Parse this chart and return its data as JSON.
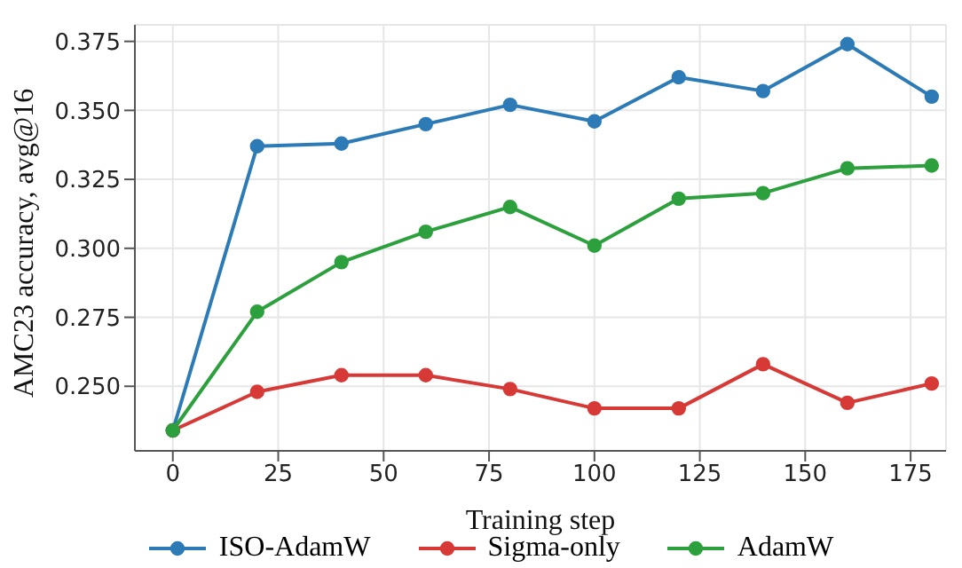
{
  "chart_data": {
    "type": "line",
    "xlabel": "Training step",
    "ylabel": "AMC23 accuracy, avg@16",
    "x": [
      0,
      20,
      40,
      60,
      80,
      100,
      120,
      140,
      160,
      180
    ],
    "series": [
      {
        "name": "ISO-AdamW",
        "color": "#2c7bb6",
        "values": [
          0.234,
          0.337,
          0.338,
          0.345,
          0.352,
          0.346,
          0.362,
          0.357,
          0.374,
          0.355
        ]
      },
      {
        "name": "Sigma-only",
        "color": "#d73a36",
        "values": [
          0.234,
          0.248,
          0.254,
          0.254,
          0.249,
          0.242,
          0.242,
          0.258,
          0.244,
          0.251
        ]
      },
      {
        "name": "AdamW",
        "color": "#2ca03c",
        "values": [
          0.234,
          0.277,
          0.295,
          0.306,
          0.315,
          0.301,
          0.318,
          0.32,
          0.329,
          0.33
        ]
      }
    ],
    "xlim": [
      -9,
      183.4
    ],
    "xticks": [
      0,
      25,
      50,
      75,
      100,
      125,
      150,
      175
    ],
    "ylim": [
      0.2266,
      0.381
    ],
    "yticks": [
      {
        "value": 0.25,
        "label": "0.250"
      },
      0.275,
      {
        "value": 0.3,
        "label": "0.300"
      },
      0.325,
      {
        "value": 0.35,
        "label": "0.350"
      },
      0.375
    ],
    "grid": true,
    "legend": "bottom",
    "marker": "circle",
    "line_style": "solid"
  }
}
